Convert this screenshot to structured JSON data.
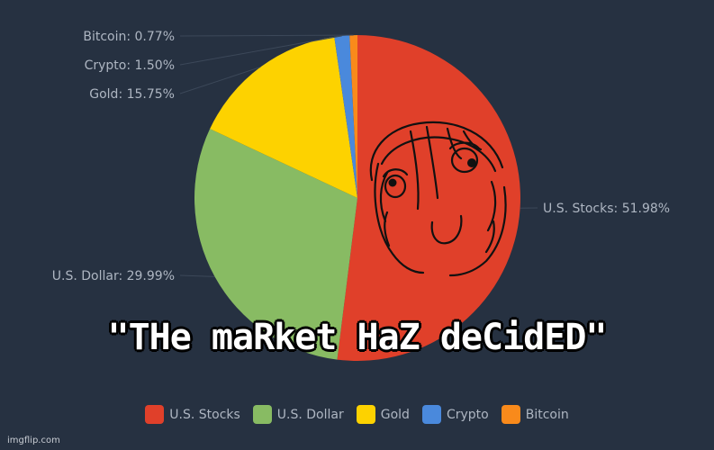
{
  "chart_data": {
    "type": "pie",
    "categories": [
      "U.S. Stocks",
      "U.S. Dollar",
      "Gold",
      "Crypto",
      "Bitcoin"
    ],
    "values": [
      51.98,
      29.99,
      15.75,
      1.5,
      0.77
    ],
    "labels": [
      "U.S. Stocks: 51.98%",
      "U.S. Dollar: 29.99%",
      "Gold: 15.75%",
      "Crypto: 1.50%",
      "Bitcoin: 0.77%"
    ],
    "colors": [
      "#e0402a",
      "#88bb63",
      "#fdd200",
      "#4a89dc",
      "#f98a1b"
    ],
    "title": "",
    "legend": "bottom"
  },
  "caption": "\"THe maRket HaZ deCidED\"",
  "watermark": "imgflip.com",
  "face_icon": "rage-face-smile-icon"
}
